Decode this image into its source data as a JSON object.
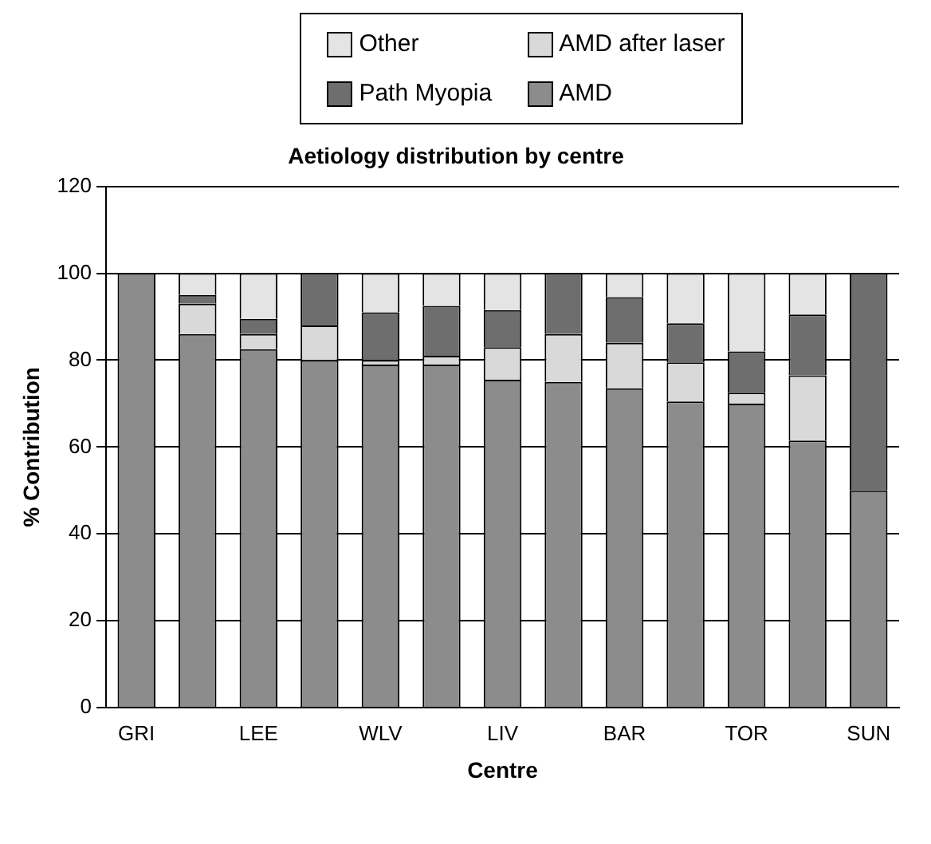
{
  "chart_data": {
    "type": "bar",
    "stacked": true,
    "title": "Aetiology distribution by centre",
    "xlabel": "Centre",
    "ylabel": "% Contribution",
    "categories": [
      "GRI",
      null,
      "LEE",
      null,
      "WLV",
      null,
      "LIV",
      null,
      "BAR",
      null,
      "TOR",
      null,
      "SUN"
    ],
    "series": [
      {
        "name": "AMD",
        "color": "#8c8c8c",
        "values": [
          100,
          86,
          82.5,
          80,
          79,
          79,
          75.5,
          75,
          73.5,
          70.5,
          70,
          61.5,
          50
        ]
      },
      {
        "name": "AMD after laser",
        "color": "#d9d9d9",
        "values": [
          0,
          7,
          3.5,
          8,
          1,
          2,
          7.5,
          11,
          10.5,
          9,
          2.5,
          15,
          0
        ]
      },
      {
        "name": "Path Myopia",
        "color": "#6e6e6e",
        "values": [
          0,
          2,
          3.5,
          12,
          11,
          11.5,
          8.5,
          14,
          10.5,
          9,
          9.5,
          14,
          50
        ]
      },
      {
        "name": "Other",
        "color": "#e4e4e4",
        "values": [
          0,
          5,
          10.5,
          0,
          9,
          7.5,
          8.5,
          0,
          5.5,
          11.5,
          18,
          9.5,
          0
        ]
      }
    ],
    "ylim": [
      0,
      120
    ],
    "yticks": [
      0,
      20,
      40,
      60,
      80,
      100,
      120
    ],
    "grid": "y",
    "legend": "top"
  }
}
